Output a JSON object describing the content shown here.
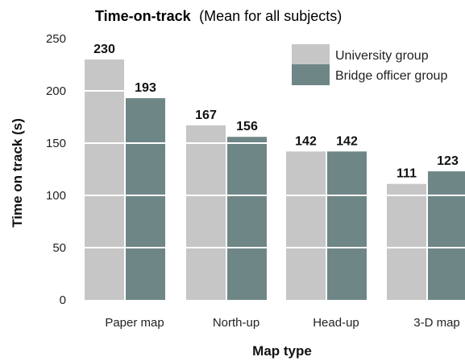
{
  "chart_data": {
    "type": "bar",
    "title": "Time-on-track",
    "subtitle": "(Mean for all subjects)",
    "xlabel": "Map type",
    "ylabel": "Time on track (s)",
    "ylim": [
      0,
      250
    ],
    "yticks": [
      0,
      50,
      100,
      150,
      200,
      250
    ],
    "categories": [
      "Paper map",
      "North-up",
      "Head-up",
      "3-D map"
    ],
    "series": [
      {
        "name": "University group",
        "color": "#c6c6c6",
        "values": [
          230,
          167,
          142,
          111
        ]
      },
      {
        "name": "Bridge officer group",
        "color": "#6f8687",
        "values": [
          193,
          156,
          142,
          123
        ]
      }
    ],
    "grid": true,
    "grid_color": "#ffffff",
    "legend": "top-right"
  }
}
